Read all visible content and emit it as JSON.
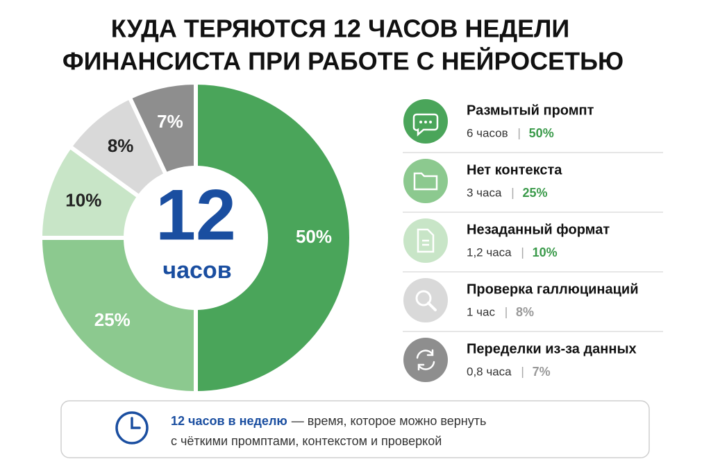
{
  "chart_data": {
    "type": "pie",
    "title": [
      "КУДА ТЕРЯЮТСЯ 12 ЧАСОВ НЕДЕЛИ",
      "ФИНАНСИСТА ПРИ РАБОТЕ С НЕЙРОСЕТЬЮ"
    ],
    "center_value": "12",
    "center_unit": "часов",
    "categories": [
      "Размытый промпт",
      "Нет контекста",
      "Незаданный формат",
      "Проверка галлюцинаций",
      "Переделки из-за данных"
    ],
    "hours": [
      "6 часов",
      "3 часа",
      "1,2 часа",
      "1 час",
      "0,8 часа"
    ],
    "values": [
      50,
      25,
      10,
      8,
      7
    ],
    "value_labels": [
      "50%",
      "25%",
      "10%",
      "8%",
      "7%"
    ],
    "colors": [
      "#4aa55a",
      "#8cc98f",
      "#c8e5c7",
      "#d9d9d9",
      "#8e8e8e"
    ],
    "footer": {
      "highlight": "12 часов в неделю",
      "rest": "— время, которое можно вернуть",
      "line2": "с чёткими промптами, контекстом и проверкой"
    }
  }
}
